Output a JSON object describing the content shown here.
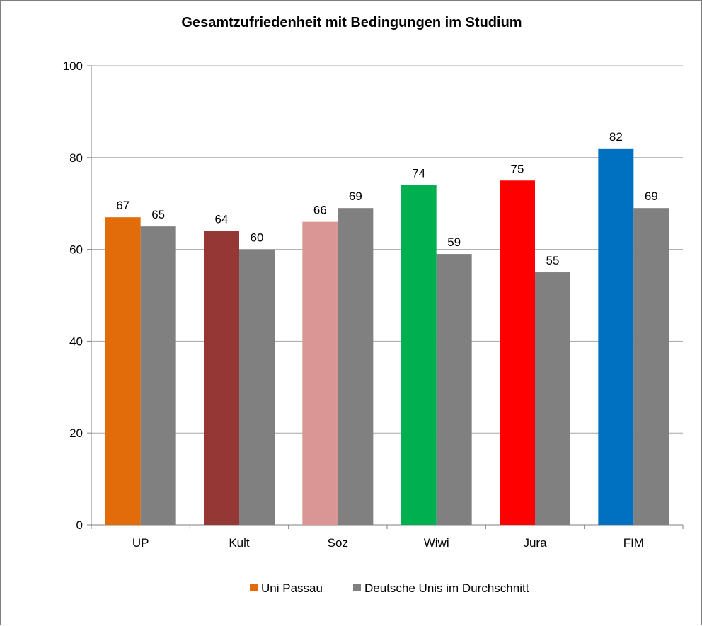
{
  "chart_data": {
    "type": "bar",
    "title": "Gesamtzufriedenheit mit Bedingungen im Studium",
    "categories": [
      "UP",
      "Kult",
      "Soz",
      "Wiwi",
      "Jura",
      "FIM"
    ],
    "series": [
      {
        "name": "Uni Passau",
        "values": [
          67,
          64,
          66,
          74,
          75,
          82
        ],
        "colors": [
          "#E36C0A",
          "#953735",
          "#D99694",
          "#00B050",
          "#FF0000",
          "#0070C0"
        ],
        "legend_color": "#E36C0A"
      },
      {
        "name": "Deutsche Unis im Durchschnitt",
        "values": [
          65,
          60,
          69,
          59,
          55,
          69
        ],
        "colors": [
          "#808080",
          "#808080",
          "#808080",
          "#808080",
          "#808080",
          "#808080"
        ],
        "legend_color": "#808080"
      }
    ],
    "ylim": [
      0,
      100
    ],
    "yticks": [
      0,
      20,
      40,
      60,
      80,
      100
    ],
    "grid": true,
    "legend_position": "bottom"
  }
}
